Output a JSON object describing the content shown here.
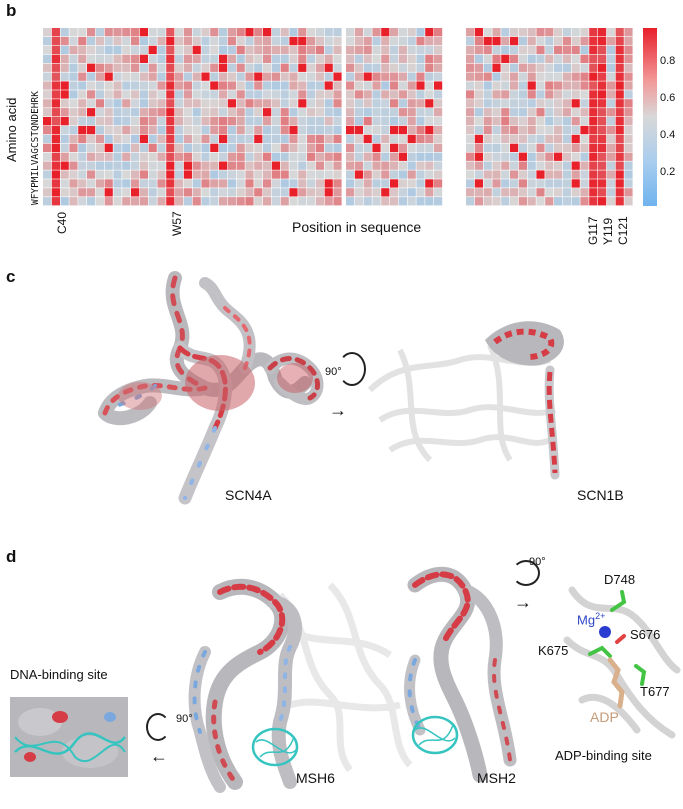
{
  "panel_b": {
    "letter": "b",
    "ylabel": "Amino acid",
    "amino_acids": "WFYPMILVAGCSTQNDEHRK",
    "xlabel": "Position in sequence",
    "position_labels_left": [
      "C40",
      "W57"
    ],
    "position_labels_right": [
      "G117",
      "Y119",
      "C121"
    ],
    "colorbar_ticks": [
      "0.8",
      "0.6",
      "0.4",
      "0.2"
    ],
    "colors": {
      "high": "#e8202a",
      "mid": "#d8d8d8",
      "low": "#6fb3ee"
    }
  },
  "panel_c": {
    "letter": "c",
    "label_left": "SCN4A",
    "label_right": "SCN1B",
    "rotation": "90°"
  },
  "panel_d": {
    "letter": "d",
    "label_msh6": "MSH6",
    "label_msh2": "MSH2",
    "dna_site": "DNA-binding site",
    "adp_site": "ADP-binding site",
    "rotation_left": "90°",
    "rotation_right": "90°",
    "residues": {
      "d748": "D748",
      "mg": "Mg",
      "mg_sup": "2+",
      "s676": "S676",
      "k675": "K675",
      "t677": "T677",
      "adp": "ADP"
    }
  }
}
